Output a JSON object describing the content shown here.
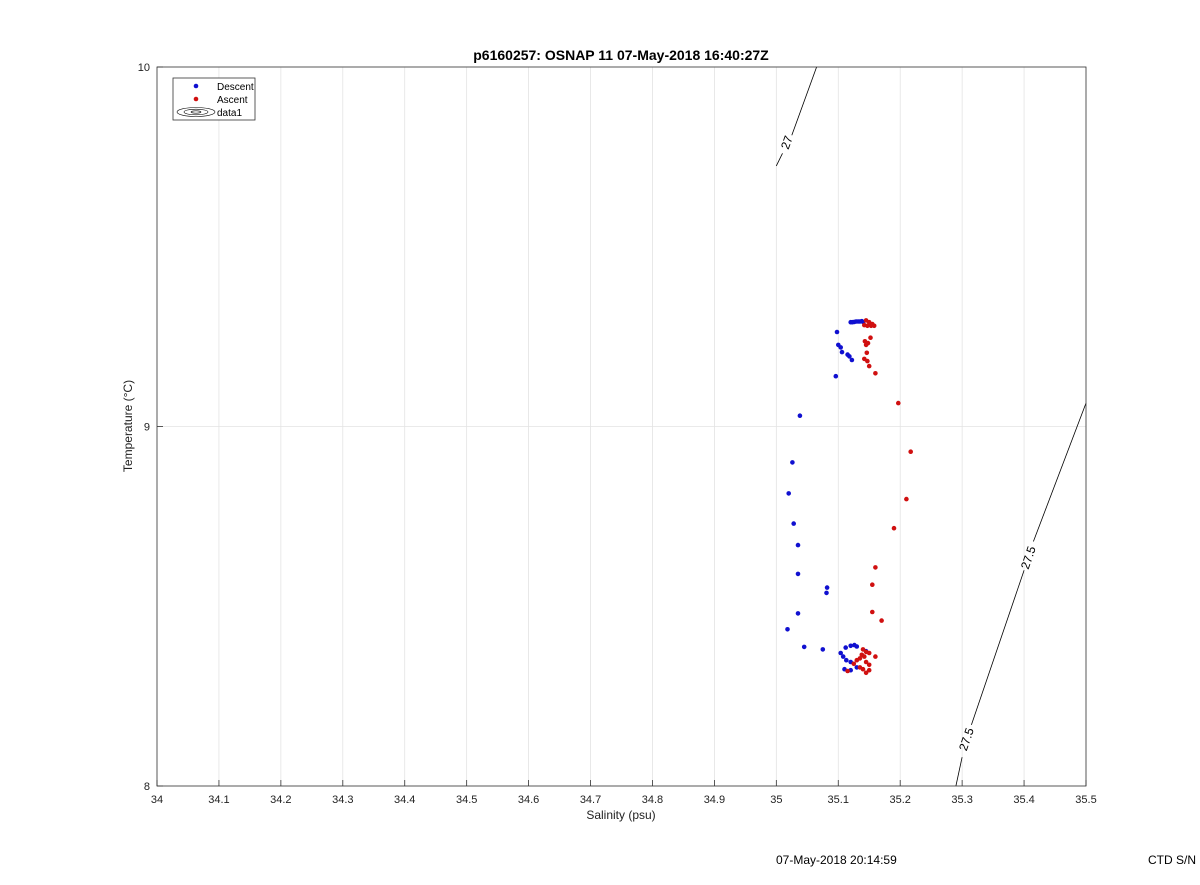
{
  "chart_data": {
    "type": "scatter",
    "title": "p6160257: OSNAP 11 07-May-2018 16:40:27Z",
    "xlabel": "Salinity (psu)",
    "ylabel": "Temperature (°C)",
    "xlim": [
      34,
      35.5
    ],
    "ylim": [
      8,
      10
    ],
    "xticks": [
      34,
      34.1,
      34.2,
      34.3,
      34.4,
      34.5,
      34.6,
      34.7,
      34.8,
      34.9,
      35,
      35.1,
      35.2,
      35.3,
      35.4,
      35.5
    ],
    "xtick_labels": [
      "34",
      "34.1",
      "34.2",
      "34.3",
      "34.4",
      "34.5",
      "34.6",
      "34.7",
      "34.8",
      "34.9",
      "35",
      "35.1",
      "35.2",
      "35.3",
      "35.4",
      "35.5"
    ],
    "yticks": [
      8,
      9,
      10
    ],
    "ytick_labels": [
      "8",
      "9",
      "10"
    ],
    "grid": true,
    "legend": {
      "placement": "top-left",
      "entries": [
        {
          "label": "Descent",
          "marker": "dot",
          "color": "#1010d0"
        },
        {
          "label": "Ascent",
          "marker": "dot",
          "color": "#d01010"
        },
        {
          "label": "data1",
          "marker": "contour",
          "color": "#000000"
        }
      ]
    },
    "series": [
      {
        "name": "Descent",
        "color": "#1010d0",
        "points": [
          [
            35.12,
            9.29
          ],
          [
            35.123,
            9.29
          ],
          [
            35.126,
            9.291
          ],
          [
            35.129,
            9.292
          ],
          [
            35.132,
            9.292
          ],
          [
            35.135,
            9.292
          ],
          [
            35.138,
            9.293
          ],
          [
            35.14,
            9.291
          ],
          [
            35.098,
            9.263
          ],
          [
            35.1,
            9.227
          ],
          [
            35.104,
            9.22
          ],
          [
            35.106,
            9.207
          ],
          [
            35.115,
            9.2
          ],
          [
            35.118,
            9.195
          ],
          [
            35.122,
            9.185
          ],
          [
            35.096,
            9.14
          ],
          [
            35.038,
            9.03
          ],
          [
            35.026,
            8.9
          ],
          [
            35.02,
            8.814
          ],
          [
            35.028,
            8.73
          ],
          [
            35.035,
            8.67
          ],
          [
            35.035,
            8.59
          ],
          [
            35.082,
            8.552
          ],
          [
            35.081,
            8.537
          ],
          [
            35.035,
            8.48
          ],
          [
            35.018,
            8.436
          ],
          [
            35.045,
            8.387
          ],
          [
            35.075,
            8.38
          ],
          [
            35.12,
            8.39
          ],
          [
            35.126,
            8.392
          ],
          [
            35.13,
            8.388
          ],
          [
            35.112,
            8.385
          ],
          [
            35.104,
            8.37
          ],
          [
            35.108,
            8.36
          ],
          [
            35.113,
            8.35
          ],
          [
            35.12,
            8.345
          ],
          [
            35.11,
            8.325
          ],
          [
            35.12,
            8.322
          ],
          [
            35.13,
            8.33
          ],
          [
            35.145,
            8.375
          ]
        ]
      },
      {
        "name": "Ascent",
        "color": "#d01010",
        "points": [
          [
            35.145,
            9.295
          ],
          [
            35.15,
            9.29
          ],
          [
            35.155,
            9.285
          ],
          [
            35.142,
            9.282
          ],
          [
            35.147,
            9.28
          ],
          [
            35.153,
            9.28
          ],
          [
            35.158,
            9.28
          ],
          [
            35.152,
            9.247
          ],
          [
            35.143,
            9.237
          ],
          [
            35.148,
            9.232
          ],
          [
            35.145,
            9.227
          ],
          [
            35.146,
            9.205
          ],
          [
            35.142,
            9.188
          ],
          [
            35.147,
            9.182
          ],
          [
            35.15,
            9.168
          ],
          [
            35.16,
            9.148
          ],
          [
            35.197,
            9.065
          ],
          [
            35.217,
            8.93
          ],
          [
            35.21,
            8.798
          ],
          [
            35.19,
            8.717
          ],
          [
            35.16,
            8.608
          ],
          [
            35.155,
            8.56
          ],
          [
            35.155,
            8.484
          ],
          [
            35.17,
            8.46
          ],
          [
            35.14,
            8.38
          ],
          [
            35.145,
            8.373
          ],
          [
            35.15,
            8.37
          ],
          [
            35.138,
            8.365
          ],
          [
            35.142,
            8.36
          ],
          [
            35.16,
            8.36
          ],
          [
            35.135,
            8.355
          ],
          [
            35.13,
            8.35
          ],
          [
            35.145,
            8.345
          ],
          [
            35.125,
            8.34
          ],
          [
            35.15,
            8.337
          ],
          [
            35.135,
            8.33
          ],
          [
            35.14,
            8.325
          ],
          [
            35.15,
            8.322
          ],
          [
            35.115,
            8.32
          ],
          [
            35.145,
            8.315
          ]
        ]
      }
    ],
    "contours": [
      {
        "label": "27",
        "segments": [
          [
            [
              35.0,
              9.725
            ],
            [
              35.01,
              9.76
            ]
          ],
          [
            [
              35.025,
              9.81
            ],
            [
              35.065,
              10.0
            ]
          ]
        ],
        "label_at": [
          35.017,
          9.79
        ]
      },
      {
        "label": "27.5",
        "segments": [
          [
            [
              35.29,
              8.0
            ],
            [
              35.3,
              8.08
            ]
          ],
          [
            [
              35.315,
              8.17
            ],
            [
              35.4,
              8.6
            ]
          ],
          [
            [
              35.415,
              8.68
            ],
            [
              35.5,
              9.065
            ]
          ]
        ],
        "label_at_list": [
          [
            35.307,
            8.13
          ],
          [
            35.407,
            8.635
          ]
        ]
      }
    ]
  },
  "footer": {
    "timestamp": "07-May-2018 20:14:59",
    "serial": "CTD S/N"
  }
}
